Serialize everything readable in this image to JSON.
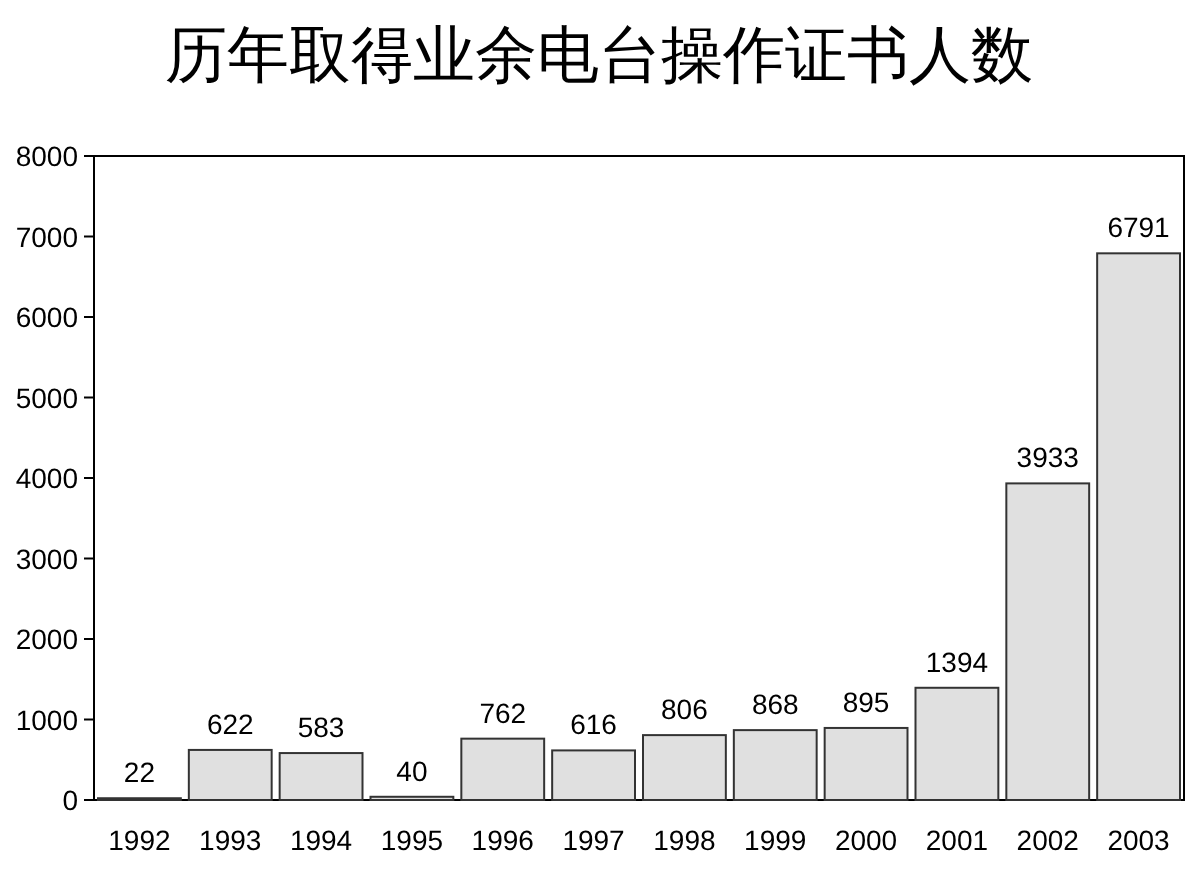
{
  "chart_data": {
    "type": "bar",
    "title": "历年取得业余电台操作证书人数",
    "categories": [
      "1992",
      "1993",
      "1994",
      "1995",
      "1996",
      "1997",
      "1998",
      "1999",
      "2000",
      "2001",
      "2002",
      "2003"
    ],
    "values": [
      22,
      622,
      583,
      40,
      762,
      616,
      806,
      868,
      895,
      1394,
      3933,
      6791
    ],
    "color": "#e0e0e0",
    "ylim": [
      0,
      8000
    ],
    "yticks": [
      0,
      1000,
      2000,
      3000,
      4000,
      5000,
      6000,
      7000,
      8000
    ],
    "data_labels": true
  }
}
